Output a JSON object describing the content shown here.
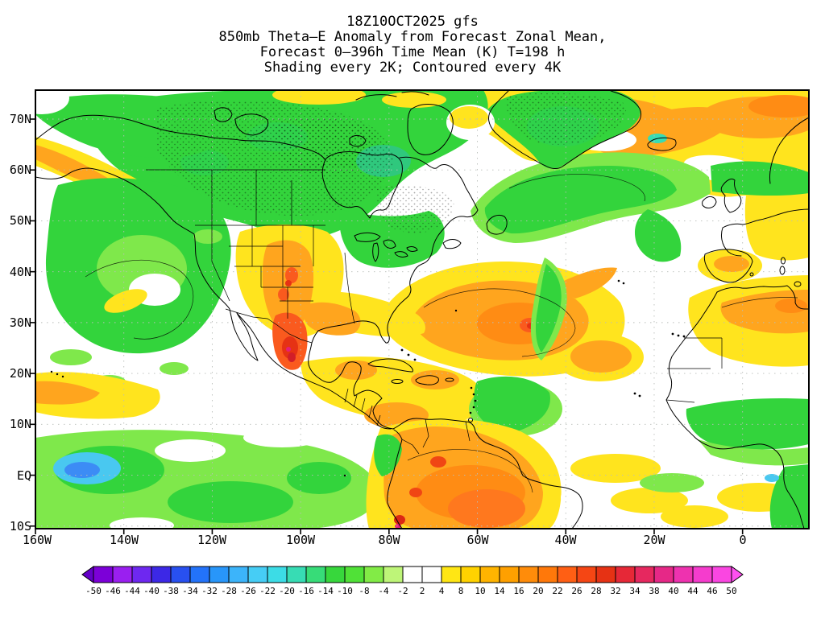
{
  "header": {
    "line1": "18Z10OCT2025 gfs",
    "line2": "850mb Theta–E Anomaly from Forecast Zonal Mean,",
    "line3": "Forecast 0–396h Time Mean (K) T=198 h",
    "line4": "Shading every 2K; Contoured every 4K"
  },
  "axes": {
    "lat_labels": [
      "70N",
      "60N",
      "50N",
      "40N",
      "30N",
      "20N",
      "10N",
      "EQ",
      "10S"
    ],
    "lon_labels": [
      "160W",
      "140W",
      "120W",
      "100W",
      "80W",
      "60W",
      "40W",
      "20W",
      "0"
    ]
  },
  "colorbar": {
    "tick_labels": [
      "-50",
      "-46",
      "-44",
      "-40",
      "-38",
      "-34",
      "-32",
      "-28",
      "-26",
      "-22",
      "-20",
      "-16",
      "-14",
      "-10",
      "-8",
      "-4",
      "-2",
      "2",
      "4",
      "8",
      "10",
      "14",
      "16",
      "20",
      "22",
      "26",
      "28",
      "32",
      "34",
      "38",
      "40",
      "44",
      "46",
      "50"
    ],
    "cell_colors": [
      "#7C00D8",
      "#9A1FF0",
      "#6E28F0",
      "#3C28E6",
      "#2850F0",
      "#2373FA",
      "#2896FA",
      "#3CB4FA",
      "#46CDF5",
      "#3CDCE6",
      "#37DCB4",
      "#37DC78",
      "#37D73C",
      "#50E137",
      "#82EB46",
      "#BEF578",
      "#FFFFFF",
      "#FFFFFF",
      "#FFE614",
      "#FFD200",
      "#FFB400",
      "#FFA000",
      "#FF8C0A",
      "#FF780A",
      "#FF5F14",
      "#F54614",
      "#E63214",
      "#E62837",
      "#E6285F",
      "#E62887",
      "#EE32AF",
      "#F53CCD",
      "#FA46E1"
    ],
    "left_arrow_color": "#6400C8",
    "right_arrow_color": "#FF50F0"
  },
  "chart_data": {
    "type": "heatmap",
    "title": "850mb Theta-E Anomaly from Forecast Zonal Mean",
    "model_run": "18Z10OCT2025 gfs",
    "forecast_window": "Forecast 0-396h Time Mean (K) T=198 h",
    "shading_note": "Shading every 2K; Contoured every 4K",
    "units": "K",
    "x_axis": {
      "kind": "longitude",
      "ticks": [
        "160W",
        "140W",
        "120W",
        "100W",
        "80W",
        "60W",
        "40W",
        "20W",
        "0"
      ],
      "range_deg": [
        -160,
        15
      ]
    },
    "y_axis": {
      "kind": "latitude",
      "ticks": [
        "70N",
        "60N",
        "50N",
        "40N",
        "30N",
        "20N",
        "10N",
        "EQ",
        "10S"
      ],
      "range_deg": [
        -10.5,
        75.7
      ]
    },
    "colorbar_levels": [
      -50,
      -46,
      -44,
      -40,
      -38,
      -34,
      -32,
      -28,
      -26,
      -22,
      -20,
      -16,
      -14,
      -10,
      -8,
      -4,
      -2,
      2,
      4,
      8,
      10,
      14,
      16,
      20,
      22,
      26,
      28,
      32,
      34,
      38,
      40,
      44,
      46,
      50
    ],
    "legend_position": "bottom",
    "grid": "dotted, every 10 deg lat / 20 deg lon",
    "notable_regions": [
      {
        "area": "Alaska, NW and central Canada, Hudson Bay",
        "anomaly_k": "-4 to -14, dense black contours"
      },
      {
        "area": "Gulf of Alaska coastal streak",
        "anomaly_k": "+4 to +12"
      },
      {
        "area": "NE Pacific off California",
        "anomaly_k": "-4 to -10"
      },
      {
        "area": "SW United States / Rockies",
        "anomaly_k": "+8 to +20"
      },
      {
        "area": "NW Mexico Sierra Madre",
        "anomaly_k": "+16 to +30 red core"
      },
      {
        "area": "Subtropical central North Atlantic near 30N 55W",
        "anomaly_k": "+8 to +20 with small +22 core"
      },
      {
        "area": "North Atlantic near 50N",
        "anomaly_k": "-4 to -12"
      },
      {
        "area": "Greenland interior",
        "anomaly_k": "-4 to -12"
      },
      {
        "area": "NE Atlantic, Iceland toward Europe",
        "anomaly_k": "+4 to +14"
      },
      {
        "area": "Tropical Pacific near 150W at equator",
        "anomaly_k": "-12 to -22 cyan-blue patch"
      },
      {
        "area": "Amazon and northern South America",
        "anomaly_k": "+8 to +22 with +26 to +34 spots"
      },
      {
        "area": "Caribbean and Central America",
        "anomaly_k": "+4 to +12"
      },
      {
        "area": "West African Sahel band 5-13N",
        "anomaly_k": "-4 to -10"
      },
      {
        "area": "Sahara / NW Africa 20-30N",
        "anomaly_k": "+4 to +14"
      }
    ]
  }
}
